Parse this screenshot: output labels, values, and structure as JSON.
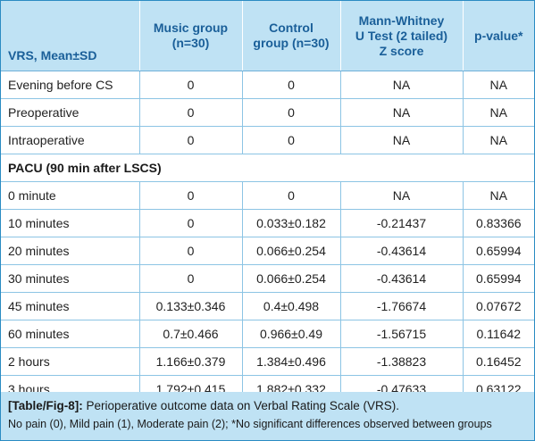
{
  "table": {
    "headers": [
      "VRS, Mean±SD",
      "Music group (n=30)",
      "Control group (n=30)",
      "Mann-Whitney U Test (2 tailed) Z score",
      "p-value*"
    ],
    "header_lines": [
      [
        "VRS, Mean±SD"
      ],
      [
        "Music group",
        "(n=30)"
      ],
      [
        "Control",
        "group (n=30)"
      ],
      [
        "Mann-Whitney",
        "U Test (2 tailed)",
        "Z score"
      ],
      [
        "p-value*"
      ]
    ],
    "rows": [
      {
        "cells": [
          "Evening before CS",
          "0",
          "0",
          "NA",
          "NA"
        ]
      },
      {
        "cells": [
          "Preoperative",
          "0",
          "0",
          "NA",
          "NA"
        ]
      },
      {
        "cells": [
          "Intraoperative",
          "0",
          "0",
          "NA",
          "NA"
        ]
      },
      {
        "group": "PACU (90 min after LSCS)"
      },
      {
        "cells": [
          "0 minute",
          "0",
          "0",
          "NA",
          "NA"
        ]
      },
      {
        "cells": [
          "10 minutes",
          "0",
          "0.033±0.182",
          "-0.21437",
          "0.83366"
        ]
      },
      {
        "cells": [
          "20 minutes",
          "0",
          "0.066±0.254",
          "-0.43614",
          "0.65994"
        ]
      },
      {
        "cells": [
          "30 minutes",
          "0",
          "0.066±0.254",
          "-0.43614",
          "0.65994"
        ]
      },
      {
        "cells": [
          "45 minutes",
          "0.133±0.346",
          "0.4±0.498",
          "-1.76674",
          "0.07672"
        ]
      },
      {
        "cells": [
          "60 minutes",
          "0.7±0.466",
          "0.966±0.49",
          "-1.56715",
          "0.11642"
        ]
      },
      {
        "cells": [
          "2 hours",
          "1.166±0.379",
          "1.384±0.496",
          "-1.38823",
          "0.16452"
        ]
      },
      {
        "cells": [
          "3 hours",
          "1.792±0.415",
          "1.882±0.332",
          "-0.47633",
          "0.63122"
        ]
      }
    ]
  },
  "caption": {
    "label": "[Table/Fig-8]:",
    "title": "Perioperative outcome data on Verbal Rating Scale (VRS).",
    "note": "No pain (0), Mild pain (1), Moderate pain (2); *No significant differences observed between groups"
  },
  "colors": {
    "header_bg": "#bfe2f4",
    "header_text": "#1a5f99",
    "border": "#8cc4e4",
    "frame": "#2a8bc3"
  }
}
